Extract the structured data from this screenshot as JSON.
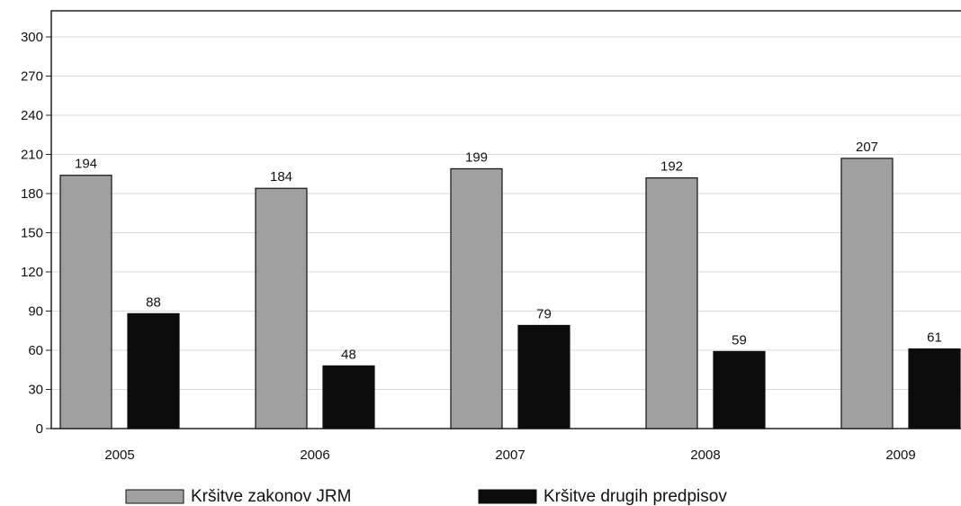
{
  "chart_data": {
    "type": "bar",
    "categories": [
      "2005",
      "2006",
      "2007",
      "2008",
      "2009"
    ],
    "series": [
      {
        "name": "Kršitve zakonov JRM",
        "values": [
          194,
          184,
          199,
          192,
          207
        ],
        "color": "#a0a0a0"
      },
      {
        "name": "Kršitve drugih predpisov",
        "values": [
          88,
          48,
          79,
          59,
          61
        ],
        "color": "#0c0c0c"
      }
    ],
    "ylim": [
      0,
      320
    ],
    "yticks": [
      0,
      30,
      60,
      90,
      120,
      150,
      180,
      210,
      240,
      270,
      300
    ],
    "grid": true,
    "legend_position": "bottom",
    "title": "",
    "xlabel": "",
    "ylabel": ""
  }
}
